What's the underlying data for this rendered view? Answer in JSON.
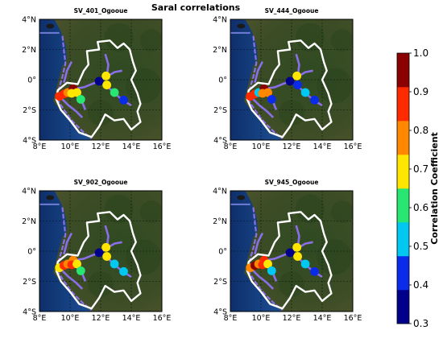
{
  "chart_data": {
    "type": "scatter",
    "title": "Saral correlations",
    "panels": [
      {
        "title": "SV_401_Ogooue",
        "points": [
          {
            "lon": 9.3,
            "lat": -1.1,
            "r": 0.83
          },
          {
            "lon": 9.6,
            "lat": -0.95,
            "r": 0.85
          },
          {
            "lon": 9.85,
            "lat": -0.85,
            "r": 0.78
          },
          {
            "lon": 10.2,
            "lat": -0.6,
            "r": 0.95
          },
          {
            "lon": 10.1,
            "lat": -0.9,
            "r": 0.72
          },
          {
            "lon": 10.45,
            "lat": -0.85,
            "r": 0.7
          },
          {
            "lon": 10.7,
            "lat": -1.3,
            "r": 0.58
          },
          {
            "lon": 11.9,
            "lat": -0.1,
            "r": 0.35
          },
          {
            "lon": 12.35,
            "lat": 0.25,
            "r": 0.67
          },
          {
            "lon": 12.4,
            "lat": -0.35,
            "r": 0.65
          },
          {
            "lon": 12.9,
            "lat": -0.85,
            "r": 0.57
          },
          {
            "lon": 13.5,
            "lat": -1.35,
            "r": 0.43
          }
        ]
      },
      {
        "title": "SV_444_Ogooue",
        "points": [
          {
            "lon": 9.3,
            "lat": -1.1,
            "r": 0.83
          },
          {
            "lon": 9.6,
            "lat": -0.95,
            "r": 0.83
          },
          {
            "lon": 9.85,
            "lat": -0.85,
            "r": 0.55
          },
          {
            "lon": 10.2,
            "lat": -0.6,
            "r": 0.93
          },
          {
            "lon": 10.1,
            "lat": -0.9,
            "r": 0.75
          },
          {
            "lon": 10.45,
            "lat": -0.85,
            "r": 0.75
          },
          {
            "lon": 10.7,
            "lat": -1.3,
            "r": 0.45
          },
          {
            "lon": 11.9,
            "lat": -0.1,
            "r": 0.35
          },
          {
            "lon": 12.35,
            "lat": 0.25,
            "r": 0.73
          },
          {
            "lon": 12.4,
            "lat": -0.35,
            "r": 0.45
          },
          {
            "lon": 12.9,
            "lat": -0.85,
            "r": 0.55
          },
          {
            "lon": 13.5,
            "lat": -1.35,
            "r": 0.43
          }
        ]
      },
      {
        "title": "SV_902_Ogooue",
        "points": [
          {
            "lon": 9.3,
            "lat": -1.1,
            "r": 0.65
          },
          {
            "lon": 9.6,
            "lat": -0.95,
            "r": 0.9
          },
          {
            "lon": 9.85,
            "lat": -0.85,
            "r": 0.78
          },
          {
            "lon": 10.2,
            "lat": -0.6,
            "r": 0.75
          },
          {
            "lon": 10.1,
            "lat": -0.9,
            "r": 0.88
          },
          {
            "lon": 10.45,
            "lat": -0.85,
            "r": 0.72
          },
          {
            "lon": 10.7,
            "lat": -1.3,
            "r": 0.58
          },
          {
            "lon": 11.9,
            "lat": -0.1,
            "r": 0.35
          },
          {
            "lon": 12.35,
            "lat": 0.25,
            "r": 0.65
          },
          {
            "lon": 12.4,
            "lat": -0.35,
            "r": 0.65
          },
          {
            "lon": 12.9,
            "lat": -0.85,
            "r": 0.48
          },
          {
            "lon": 13.5,
            "lat": -1.35,
            "r": 0.55
          }
        ]
      },
      {
        "title": "SV_945_Ogooue",
        "points": [
          {
            "lon": 9.3,
            "lat": -1.1,
            "r": 0.75
          },
          {
            "lon": 9.6,
            "lat": -0.95,
            "r": 0.95
          },
          {
            "lon": 9.85,
            "lat": -0.85,
            "r": 0.78
          },
          {
            "lon": 10.2,
            "lat": -0.6,
            "r": 0.85
          },
          {
            "lon": 10.1,
            "lat": -0.9,
            "r": 0.88
          },
          {
            "lon": 10.45,
            "lat": -0.85,
            "r": 0.72
          },
          {
            "lon": 10.7,
            "lat": -1.3,
            "r": 0.55
          },
          {
            "lon": 11.9,
            "lat": -0.1,
            "r": 0.35
          },
          {
            "lon": 12.35,
            "lat": 0.25,
            "r": 0.65
          },
          {
            "lon": 12.4,
            "lat": -0.35,
            "r": 0.65
          },
          {
            "lon": 12.9,
            "lat": -0.85,
            "r": 0.55
          },
          {
            "lon": 13.5,
            "lat": -1.35,
            "r": 0.43
          }
        ]
      }
    ],
    "xlim": [
      8,
      16
    ],
    "ylim": [
      -4,
      4
    ],
    "xticks": [
      {
        "v": 8,
        "label": "8°E"
      },
      {
        "v": 10,
        "label": "10°E"
      },
      {
        "v": 12,
        "label": "12°E"
      },
      {
        "v": 14,
        "label": "14°E"
      },
      {
        "v": 16,
        "label": "16°E"
      }
    ],
    "yticks": [
      {
        "v": 4,
        "label": "4°N"
      },
      {
        "v": 2,
        "label": "2°N"
      },
      {
        "v": 0,
        "label": "0°"
      },
      {
        "v": -2,
        "label": "2°S"
      },
      {
        "v": -4,
        "label": "4°S"
      }
    ],
    "grid": true,
    "colorbar": {
      "label": "Correlation Coefficient",
      "range": [
        0.3,
        1.0
      ],
      "ticks": [
        "0.3",
        "0.4",
        "0.5",
        "0.6",
        "0.7",
        "0.8",
        "0.9",
        "1.0"
      ],
      "colors": [
        "#00008b",
        "#0a2be8",
        "#00c8f0",
        "#27e672",
        "#ffe600",
        "#ff8800",
        "#ff2a00",
        "#8b0000"
      ]
    },
    "map_colors": {
      "ocean": "#143a7a",
      "land": "#3b4a25",
      "basin_outline": "#ffffff",
      "rivers": "#8a6fe8",
      "boundary": "#6f7dd6"
    }
  }
}
